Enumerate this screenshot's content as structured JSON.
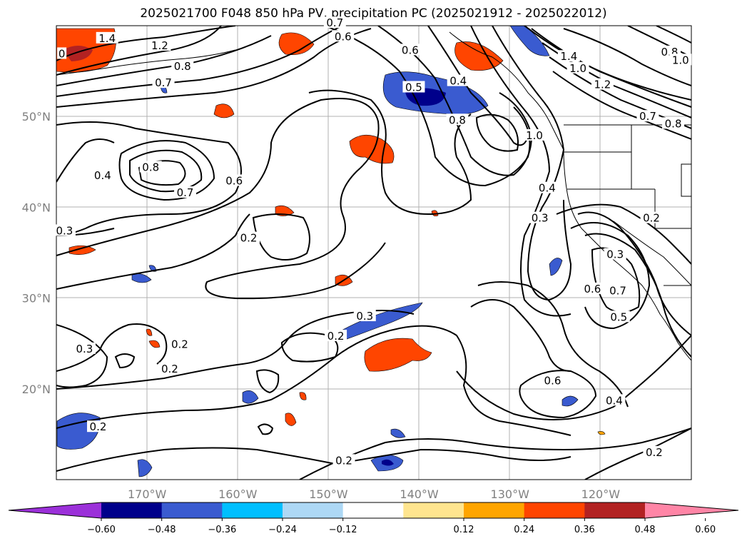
{
  "title": "2025021700 F048 850 hPa PV, precipitation PC (2025021912 - 2025022012)",
  "map": {
    "extent": {
      "lon": [
        -180,
        -110
      ],
      "lat": [
        10,
        60
      ]
    },
    "lat_ticks": [
      {
        "lat": 50,
        "label": "50°N"
      },
      {
        "lat": 40,
        "label": "40°N"
      },
      {
        "lat": 30,
        "label": "30°N"
      },
      {
        "lat": 20,
        "label": "20°N"
      }
    ],
    "lon_ticks": [
      {
        "lon": -170,
        "label": "170°W"
      },
      {
        "lon": -160,
        "label": "160°W"
      },
      {
        "lon": -150,
        "label": "150°W"
      },
      {
        "lon": -140,
        "label": "140°W"
      },
      {
        "lon": -130,
        "label": "130°W"
      },
      {
        "lon": -120,
        "label": "120°W"
      }
    ],
    "contour_labels": [
      {
        "text": "1.4",
        "lon": -174.4,
        "lat": 58.6
      },
      {
        "text": "1.2",
        "lon": -168.6,
        "lat": 57.8
      },
      {
        "text": "0.8",
        "lon": -166.1,
        "lat": 55.5
      },
      {
        "text": "0.7",
        "lon": -168.2,
        "lat": 53.7
      },
      {
        "text": "0.6",
        "lon": -148.4,
        "lat": 58.8
      },
      {
        "text": "0.7",
        "lon": -149.3,
        "lat": 60.3
      },
      {
        "text": "0.6",
        "lon": -141.0,
        "lat": 57.3
      },
      {
        "text": "0.5",
        "lon": -140.6,
        "lat": 53.2
      },
      {
        "text": "0.4",
        "lon": -135.7,
        "lat": 53.9
      },
      {
        "text": "0.8",
        "lon": -135.8,
        "lat": 49.6
      },
      {
        "text": "1.0",
        "lon": -127.3,
        "lat": 47.9
      },
      {
        "text": "1.4",
        "lon": -123.5,
        "lat": 56.6
      },
      {
        "text": "1.0",
        "lon": -122.5,
        "lat": 55.3
      },
      {
        "text": "1.2",
        "lon": -119.8,
        "lat": 53.5
      },
      {
        "text": "0.8",
        "lon": -112.4,
        "lat": 57.1
      },
      {
        "text": "1.0",
        "lon": -111.2,
        "lat": 56.2
      },
      {
        "text": "0.7",
        "lon": -114.8,
        "lat": 50.0
      },
      {
        "text": "0.8",
        "lon": -112.0,
        "lat": 49.2
      },
      {
        "text": "0.8",
        "lon": -169.6,
        "lat": 44.4
      },
      {
        "text": "0.7",
        "lon": -165.8,
        "lat": 41.6
      },
      {
        "text": "0.6",
        "lon": -160.4,
        "lat": 42.9
      },
      {
        "text": "0.4",
        "lon": -174.9,
        "lat": 43.5
      },
      {
        "text": "0.3",
        "lon": -179.1,
        "lat": 37.4
      },
      {
        "text": "0.2",
        "lon": -158.8,
        "lat": 36.6
      },
      {
        "text": "0.4",
        "lon": -125.9,
        "lat": 42.1
      },
      {
        "text": "0.3",
        "lon": -126.7,
        "lat": 38.8
      },
      {
        "text": "0.2",
        "lon": -114.4,
        "lat": 38.8
      },
      {
        "text": "0.3",
        "lon": -118.4,
        "lat": 34.8
      },
      {
        "text": "0.6",
        "lon": -120.9,
        "lat": 31.0
      },
      {
        "text": "0.7",
        "lon": -118.1,
        "lat": 30.8
      },
      {
        "text": "0.5",
        "lon": -118.0,
        "lat": 27.9
      },
      {
        "text": "0.3",
        "lon": -146.0,
        "lat": 28.0
      },
      {
        "text": "0.2",
        "lon": -149.2,
        "lat": 25.8
      },
      {
        "text": "0.2",
        "lon": -166.4,
        "lat": 24.9
      },
      {
        "text": "0.3",
        "lon": -176.9,
        "lat": 24.4
      },
      {
        "text": "0.2",
        "lon": -167.5,
        "lat": 22.2
      },
      {
        "text": "0.2",
        "lon": -175.4,
        "lat": 15.8
      },
      {
        "text": "0.6",
        "lon": -125.3,
        "lat": 20.9
      },
      {
        "text": "0.4",
        "lon": -118.5,
        "lat": 18.7
      },
      {
        "text": "0.2",
        "lon": -148.3,
        "lat": 12.1
      },
      {
        "text": "0.2",
        "lon": -114.1,
        "lat": 13.0
      },
      {
        "text": "0",
        "lon": -179.4,
        "lat": 56.9
      }
    ]
  },
  "colorbar": {
    "ticks": [
      "−0.60",
      "−0.48",
      "−0.36",
      "−0.24",
      "−0.12",
      "0.12",
      "0.24",
      "0.36",
      "0.48",
      "0.60"
    ],
    "colors": [
      "#9b30d9",
      "#00008b",
      "#3a5bd0",
      "#00bfff",
      "#add8f5",
      "#ffffff",
      "#ffe58f",
      "#ffa500",
      "#ff4500",
      "#b22222",
      "#ff85a6"
    ]
  }
}
